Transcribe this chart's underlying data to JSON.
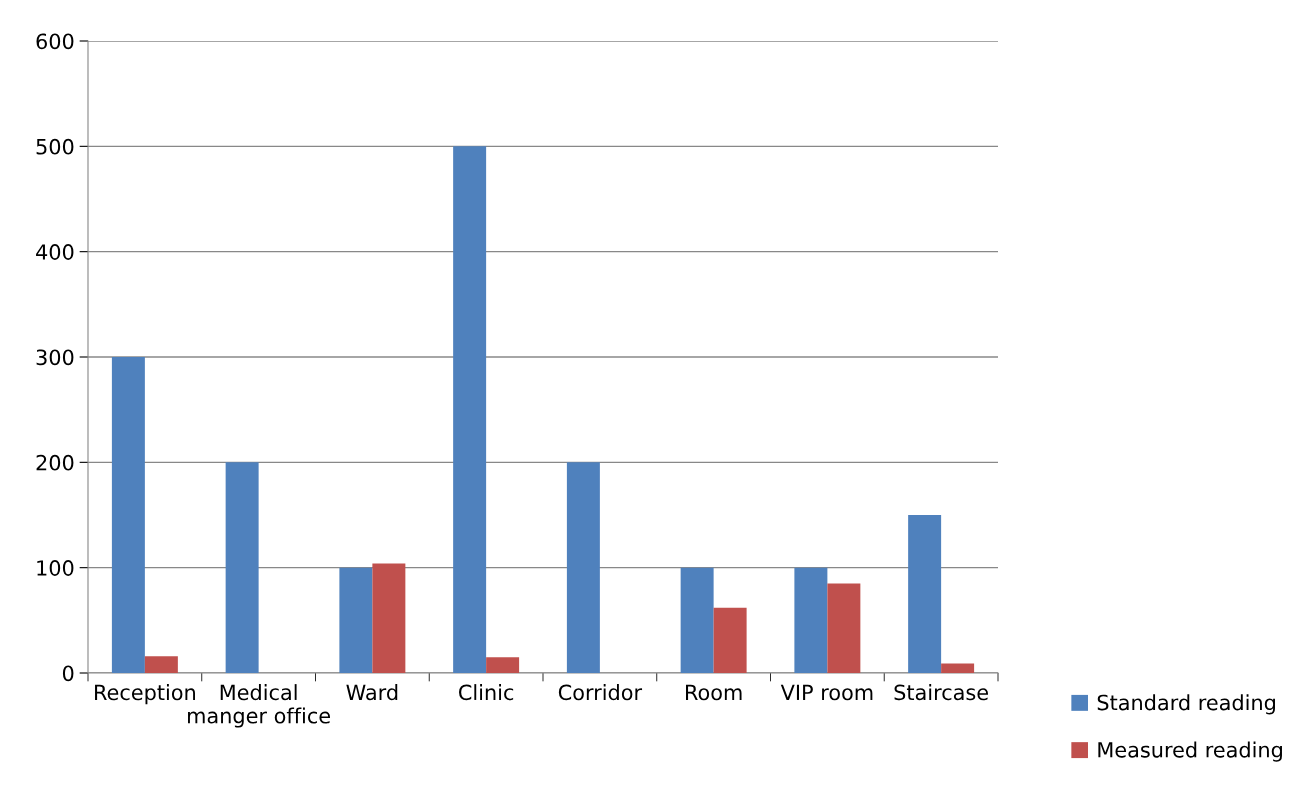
{
  "chart_data": {
    "type": "bar",
    "categories": [
      "Reception",
      "Medical manger office",
      "Ward",
      "Clinic",
      "Corridor",
      "Room",
      "VIP room",
      "Staircase"
    ],
    "series": [
      {
        "name": "Standard reading",
        "color": "#4f81bd",
        "values": [
          300,
          200,
          100,
          500,
          200,
          100,
          100,
          150
        ]
      },
      {
        "name": "Measured reading",
        "color": "#c0504d",
        "values": [
          16,
          null,
          104,
          15,
          null,
          62,
          85,
          9
        ]
      }
    ],
    "ylim": [
      0,
      600
    ],
    "yticks": [
      0,
      100,
      200,
      300,
      400,
      500,
      600
    ],
    "grid": "y",
    "legend": "right"
  }
}
